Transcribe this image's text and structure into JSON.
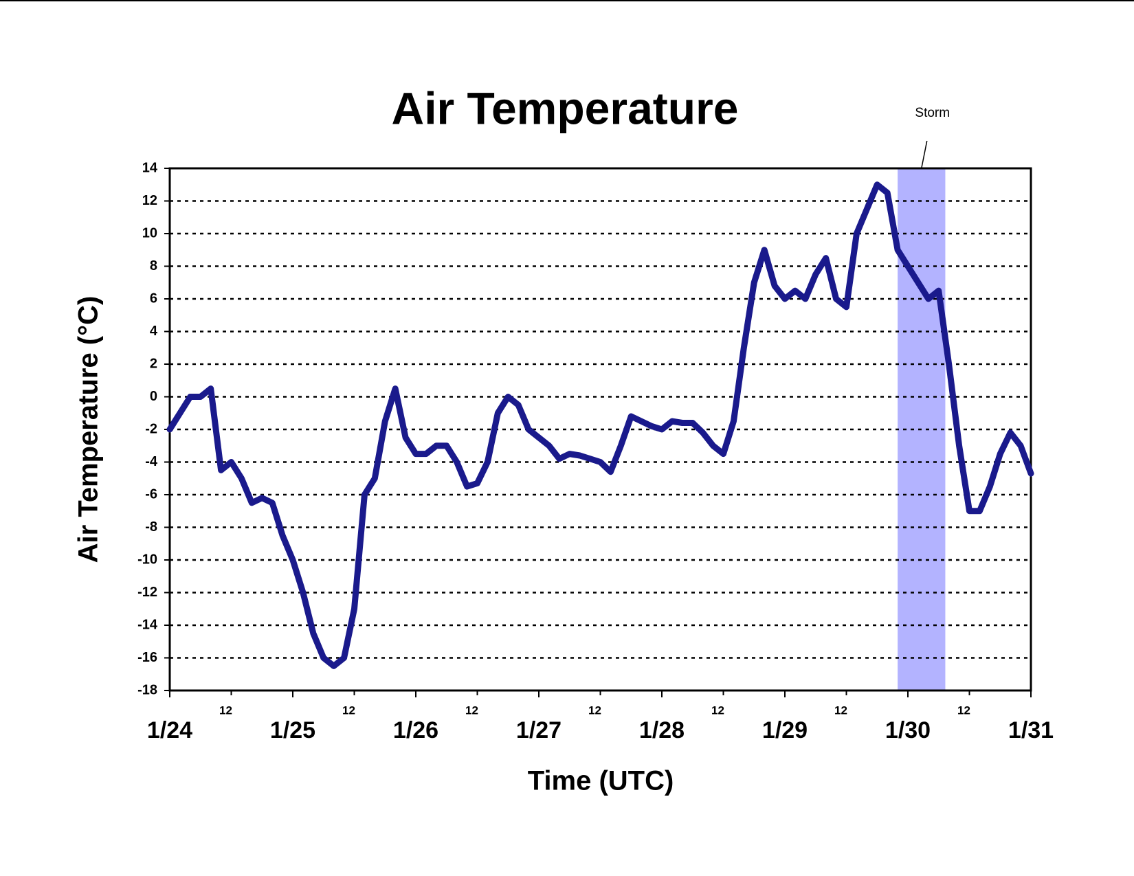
{
  "chart_data": {
    "type": "line",
    "title": "Air Temperature",
    "x_label": "Time (UTC)",
    "y_label": "Air Temperature (°C)",
    "annotation": {
      "text": "Storm",
      "span": [
        142,
        151.3
      ]
    },
    "xlim": [
      0,
      168
    ],
    "xticks": [
      {
        "value": 0,
        "label": "1/24"
      },
      {
        "value": 24,
        "label": "1/25"
      },
      {
        "value": 48,
        "label": "1/26"
      },
      {
        "value": 72,
        "label": "1/27"
      },
      {
        "value": 96,
        "label": "1/28"
      },
      {
        "value": 120,
        "label": "1/29"
      },
      {
        "value": 144,
        "label": "1/30"
      },
      {
        "value": 168,
        "label": "1/31"
      }
    ],
    "xticks_noon": [
      {
        "value": 12,
        "label": "12"
      },
      {
        "value": 36,
        "label": "12"
      },
      {
        "value": 60,
        "label": "12"
      },
      {
        "value": 84,
        "label": "12"
      },
      {
        "value": 108,
        "label": "12"
      },
      {
        "value": 132,
        "label": "12"
      },
      {
        "value": 156,
        "label": "12"
      }
    ],
    "ylim": [
      -18,
      14
    ],
    "yticks": [
      -18,
      -16,
      -14,
      -12,
      -10,
      -8,
      -6,
      -4,
      -2,
      0,
      2,
      4,
      6,
      8,
      10,
      12,
      14
    ],
    "grid": true,
    "x": [
      0,
      2,
      4,
      6,
      8,
      10,
      12,
      14,
      16,
      18,
      20,
      22,
      24,
      26,
      28,
      30,
      32,
      34,
      36,
      38,
      40,
      42,
      44,
      46,
      48,
      50,
      52,
      54,
      56,
      58,
      60,
      62,
      64,
      66,
      68,
      70,
      72,
      74,
      76,
      78,
      80,
      82,
      84,
      86,
      88,
      90,
      92,
      94,
      96,
      98,
      100,
      102,
      104,
      106,
      108,
      110,
      112,
      114,
      116,
      118,
      120,
      122,
      124,
      126,
      128,
      130,
      132,
      134,
      136,
      138,
      140,
      142,
      144,
      146,
      148,
      150,
      152,
      154,
      156,
      158,
      160,
      162,
      164,
      166,
      168
    ],
    "series": [
      {
        "name": "Air Temperature",
        "color": "#1a1a8c",
        "values": [
          -2,
          -1,
          0,
          0,
          0.5,
          -4.5,
          -4,
          -5,
          -6.5,
          -6.2,
          -6.5,
          -8.5,
          -10,
          -12,
          -14.5,
          -16,
          -16.5,
          -16,
          -13,
          -6,
          -5,
          -1.5,
          0.5,
          -2.5,
          -3.5,
          -3.5,
          -3,
          -3,
          -4,
          -5.5,
          -5.3,
          -4,
          -1,
          0,
          -0.5,
          -2,
          -2.5,
          -3,
          -3.8,
          -3.5,
          -3.6,
          -3.8,
          -4,
          -4.6,
          -3,
          -1.2,
          -1.5,
          -1.8,
          -2,
          -1.5,
          -1.6,
          -1.6,
          -2.2,
          -3,
          -3.5,
          -1.5,
          3,
          7,
          9,
          6.8,
          6,
          6.5,
          6,
          7.5,
          8.5,
          6,
          5.5,
          10,
          11.5,
          13,
          12.5,
          9,
          8,
          7,
          6,
          6.5,
          2,
          -3,
          -7,
          -7,
          -5.5,
          -3.5,
          -2.2,
          -3,
          -4.7
        ]
      }
    ]
  }
}
